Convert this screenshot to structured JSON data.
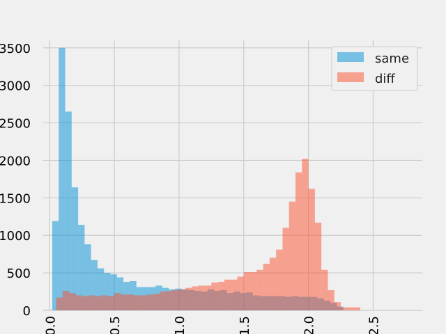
{
  "chart_data": {
    "type": "bar",
    "subtype": "histogram-overlay",
    "title": "",
    "xlabel": "",
    "ylabel": "",
    "xlim": [
      -0.05,
      2.88
    ],
    "ylim": [
      0,
      3600
    ],
    "xticks": [
      0.0,
      0.5,
      1.0,
      1.5,
      2.0,
      2.5
    ],
    "xtick_labels": [
      "0.0",
      "0.5",
      "1.0",
      "1.5",
      "2.0",
      "2.5"
    ],
    "yticks": [
      0,
      500,
      1000,
      1500,
      2000,
      2500,
      3000,
      3500
    ],
    "ytick_labels": [
      "0",
      "500",
      "1000",
      "1500",
      "2000",
      "2500",
      "3000",
      "3500"
    ],
    "grid": true,
    "legend_position": "top-right",
    "series": [
      {
        "name": "same",
        "color": "#008fd5",
        "alpha": 0.5,
        "bin_edges": [
          0.02,
          0.07,
          0.12,
          0.17,
          0.22,
          0.27,
          0.32,
          0.37,
          0.42,
          0.47,
          0.52,
          0.57,
          0.62,
          0.67,
          0.72,
          0.77,
          0.82,
          0.87,
          0.92,
          0.97,
          1.02,
          1.07,
          1.12,
          1.17,
          1.22,
          1.27,
          1.32,
          1.37,
          1.42,
          1.47,
          1.52,
          1.57,
          1.62,
          1.67,
          1.72,
          1.77,
          1.82,
          1.87,
          1.92,
          1.97,
          2.02,
          2.07,
          2.12,
          2.17,
          2.22,
          2.27
        ],
        "values": [
          1190,
          3500,
          2650,
          1640,
          1140,
          880,
          670,
          560,
          500,
          480,
          440,
          380,
          390,
          310,
          310,
          310,
          330,
          300,
          280,
          290,
          280,
          270,
          260,
          250,
          280,
          260,
          270,
          230,
          250,
          230,
          240,
          200,
          190,
          190,
          190,
          190,
          180,
          190,
          180,
          180,
          180,
          160,
          130,
          100,
          50
        ]
      },
      {
        "name": "diff",
        "color": "#fc4f30",
        "alpha": 0.5,
        "bin_edges": [
          0.05,
          0.1,
          0.15,
          0.2,
          0.25,
          0.3,
          0.35,
          0.4,
          0.45,
          0.5,
          0.55,
          0.6,
          0.65,
          0.7,
          0.75,
          0.8,
          0.85,
          0.9,
          0.95,
          1.0,
          1.05,
          1.1,
          1.15,
          1.2,
          1.25,
          1.3,
          1.35,
          1.4,
          1.45,
          1.5,
          1.55,
          1.6,
          1.65,
          1.7,
          1.75,
          1.8,
          1.85,
          1.9,
          1.95,
          2.0,
          2.05,
          2.1,
          2.15,
          2.2,
          2.25,
          2.3,
          2.35,
          2.4
        ],
        "values": [
          170,
          260,
          230,
          200,
          190,
          200,
          190,
          200,
          190,
          230,
          210,
          210,
          200,
          200,
          210,
          220,
          250,
          260,
          270,
          280,
          300,
          320,
          330,
          330,
          370,
          380,
          410,
          410,
          450,
          510,
          510,
          540,
          620,
          700,
          810,
          1100,
          1450,
          1840,
          2020,
          1620,
          1170,
          540,
          270,
          110,
          40,
          40,
          40
        ]
      }
    ]
  }
}
